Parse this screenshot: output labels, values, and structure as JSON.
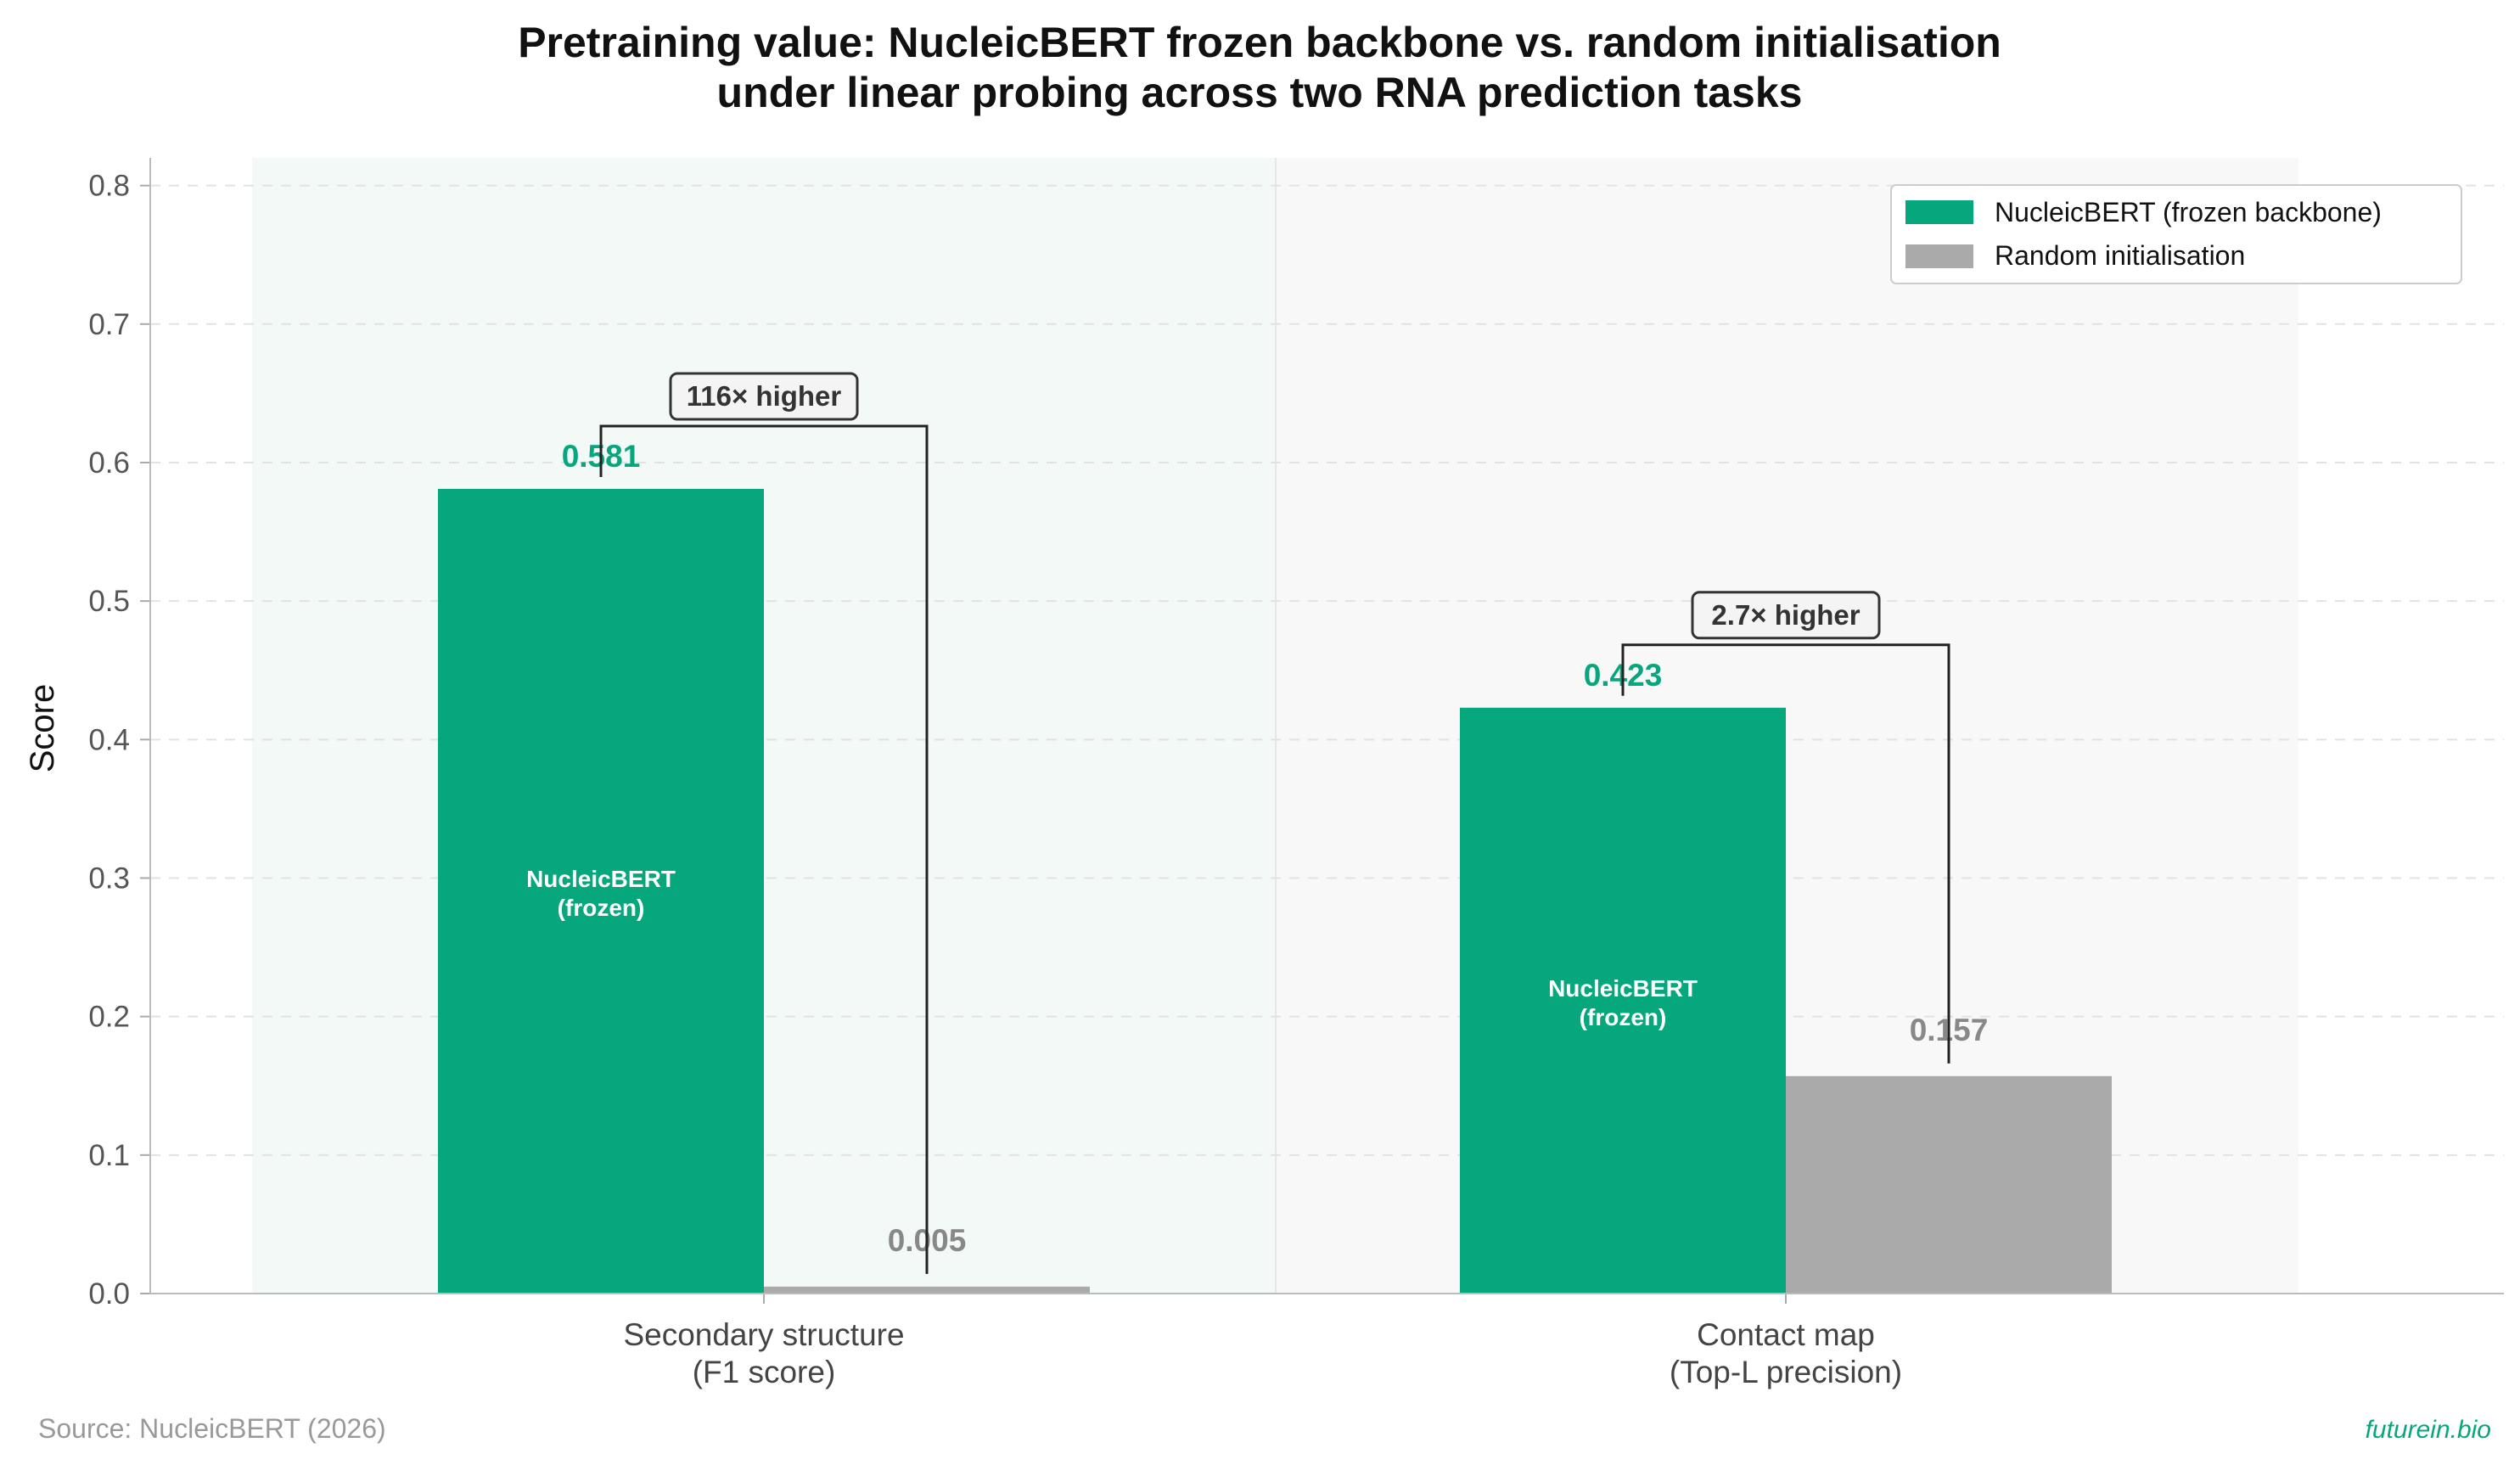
{
  "title": "Pretraining value: NucleicBERT frozen backbone vs. random initialisation",
  "subtitle": "under linear probing across two RNA prediction tasks",
  "source": "Source: NucleicBERT (2026)",
  "brand": "futurein.bio",
  "chart_data": {
    "type": "bar",
    "categories": [
      [
        "Secondary structure",
        "(F1 score)"
      ],
      [
        "Contact map",
        "(Top-L precision)"
      ]
    ],
    "series": [
      {
        "name": "NucleicBERT (frozen backbone)",
        "values": [
          0.581,
          0.423
        ],
        "labels": [
          "0.581",
          "0.423"
        ],
        "color": "#06a77d",
        "inbar_label": [
          "NucleicBERT",
          "(frozen)"
        ]
      },
      {
        "name": "Random initialisation",
        "values": [
          0.005,
          0.157
        ],
        "labels": [
          "0.005",
          "0.157"
        ],
        "color": "#aaaaaa"
      }
    ],
    "annotations": [
      "116× higher",
      "2.7× higher"
    ],
    "xlabel": "",
    "ylabel": "Score",
    "ylim": [
      0,
      0.82
    ],
    "yticks": [
      "0.0",
      "0.1",
      "0.2",
      "0.3",
      "0.4",
      "0.5",
      "0.6",
      "0.7",
      "0.8"
    ],
    "grid": "horizontal dashed",
    "legend": "top-right",
    "panel_tints": [
      "#f3f9f7",
      "#f8f8f8"
    ]
  }
}
